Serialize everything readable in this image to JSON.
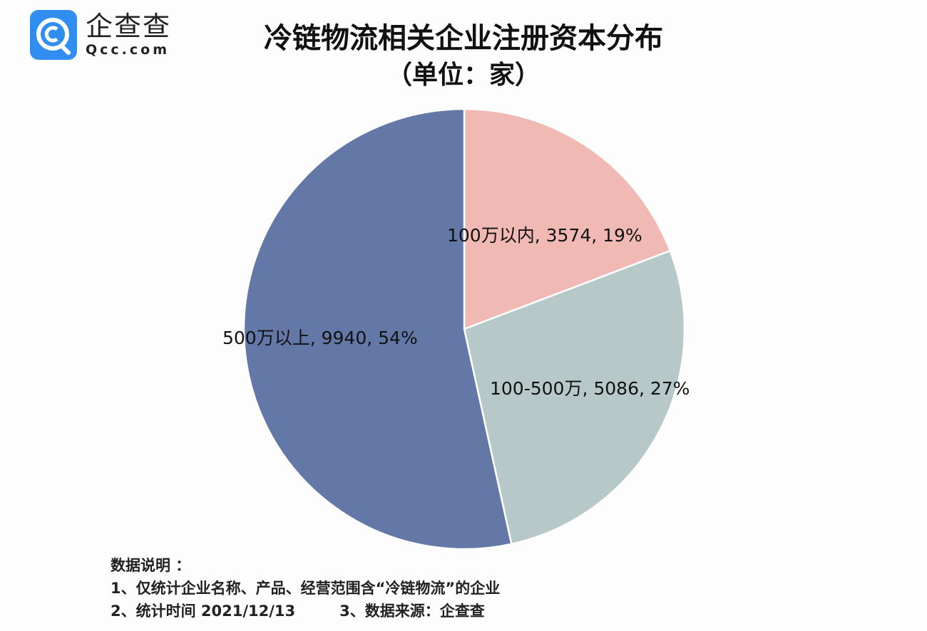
{
  "logo": {
    "icon": "qcc-q-logo-icon",
    "name_cn": "企查查",
    "name_en": "Qcc.com",
    "color": "#2f8ef0"
  },
  "header": {
    "title": "冷链物流相关企业注册资本分布",
    "subtitle": "（单位：家）"
  },
  "chart_data": {
    "type": "pie",
    "title": "冷链物流相关企业注册资本分布",
    "subtitle": "（单位：家）",
    "unit": "家",
    "start_angle_deg": 0,
    "direction": "clockwise",
    "slices": [
      {
        "label": "100万以内",
        "value": 3574,
        "percent": 19,
        "color": "#f0b9b4",
        "text": "100万以内, 3574, 19%"
      },
      {
        "label": "100-500万",
        "value": 5086,
        "percent": 27,
        "color": "#b7c8c9",
        "text": "100-500万, 5086, 27%"
      },
      {
        "label": "500万以上",
        "value": 9940,
        "percent": 54,
        "color": "#6478a8",
        "text": "500万以上, 9940, 54%"
      }
    ],
    "legend": "none",
    "data_labels": "category, value, percent"
  },
  "notes": {
    "heading": "数据说明 ：",
    "line1": "1、仅统计企业名称、产品、经营范围含“冷链物流”的企业",
    "line2a": "2、统计时间  2021/12/13",
    "line2b": "3、数据来源：企查查"
  }
}
